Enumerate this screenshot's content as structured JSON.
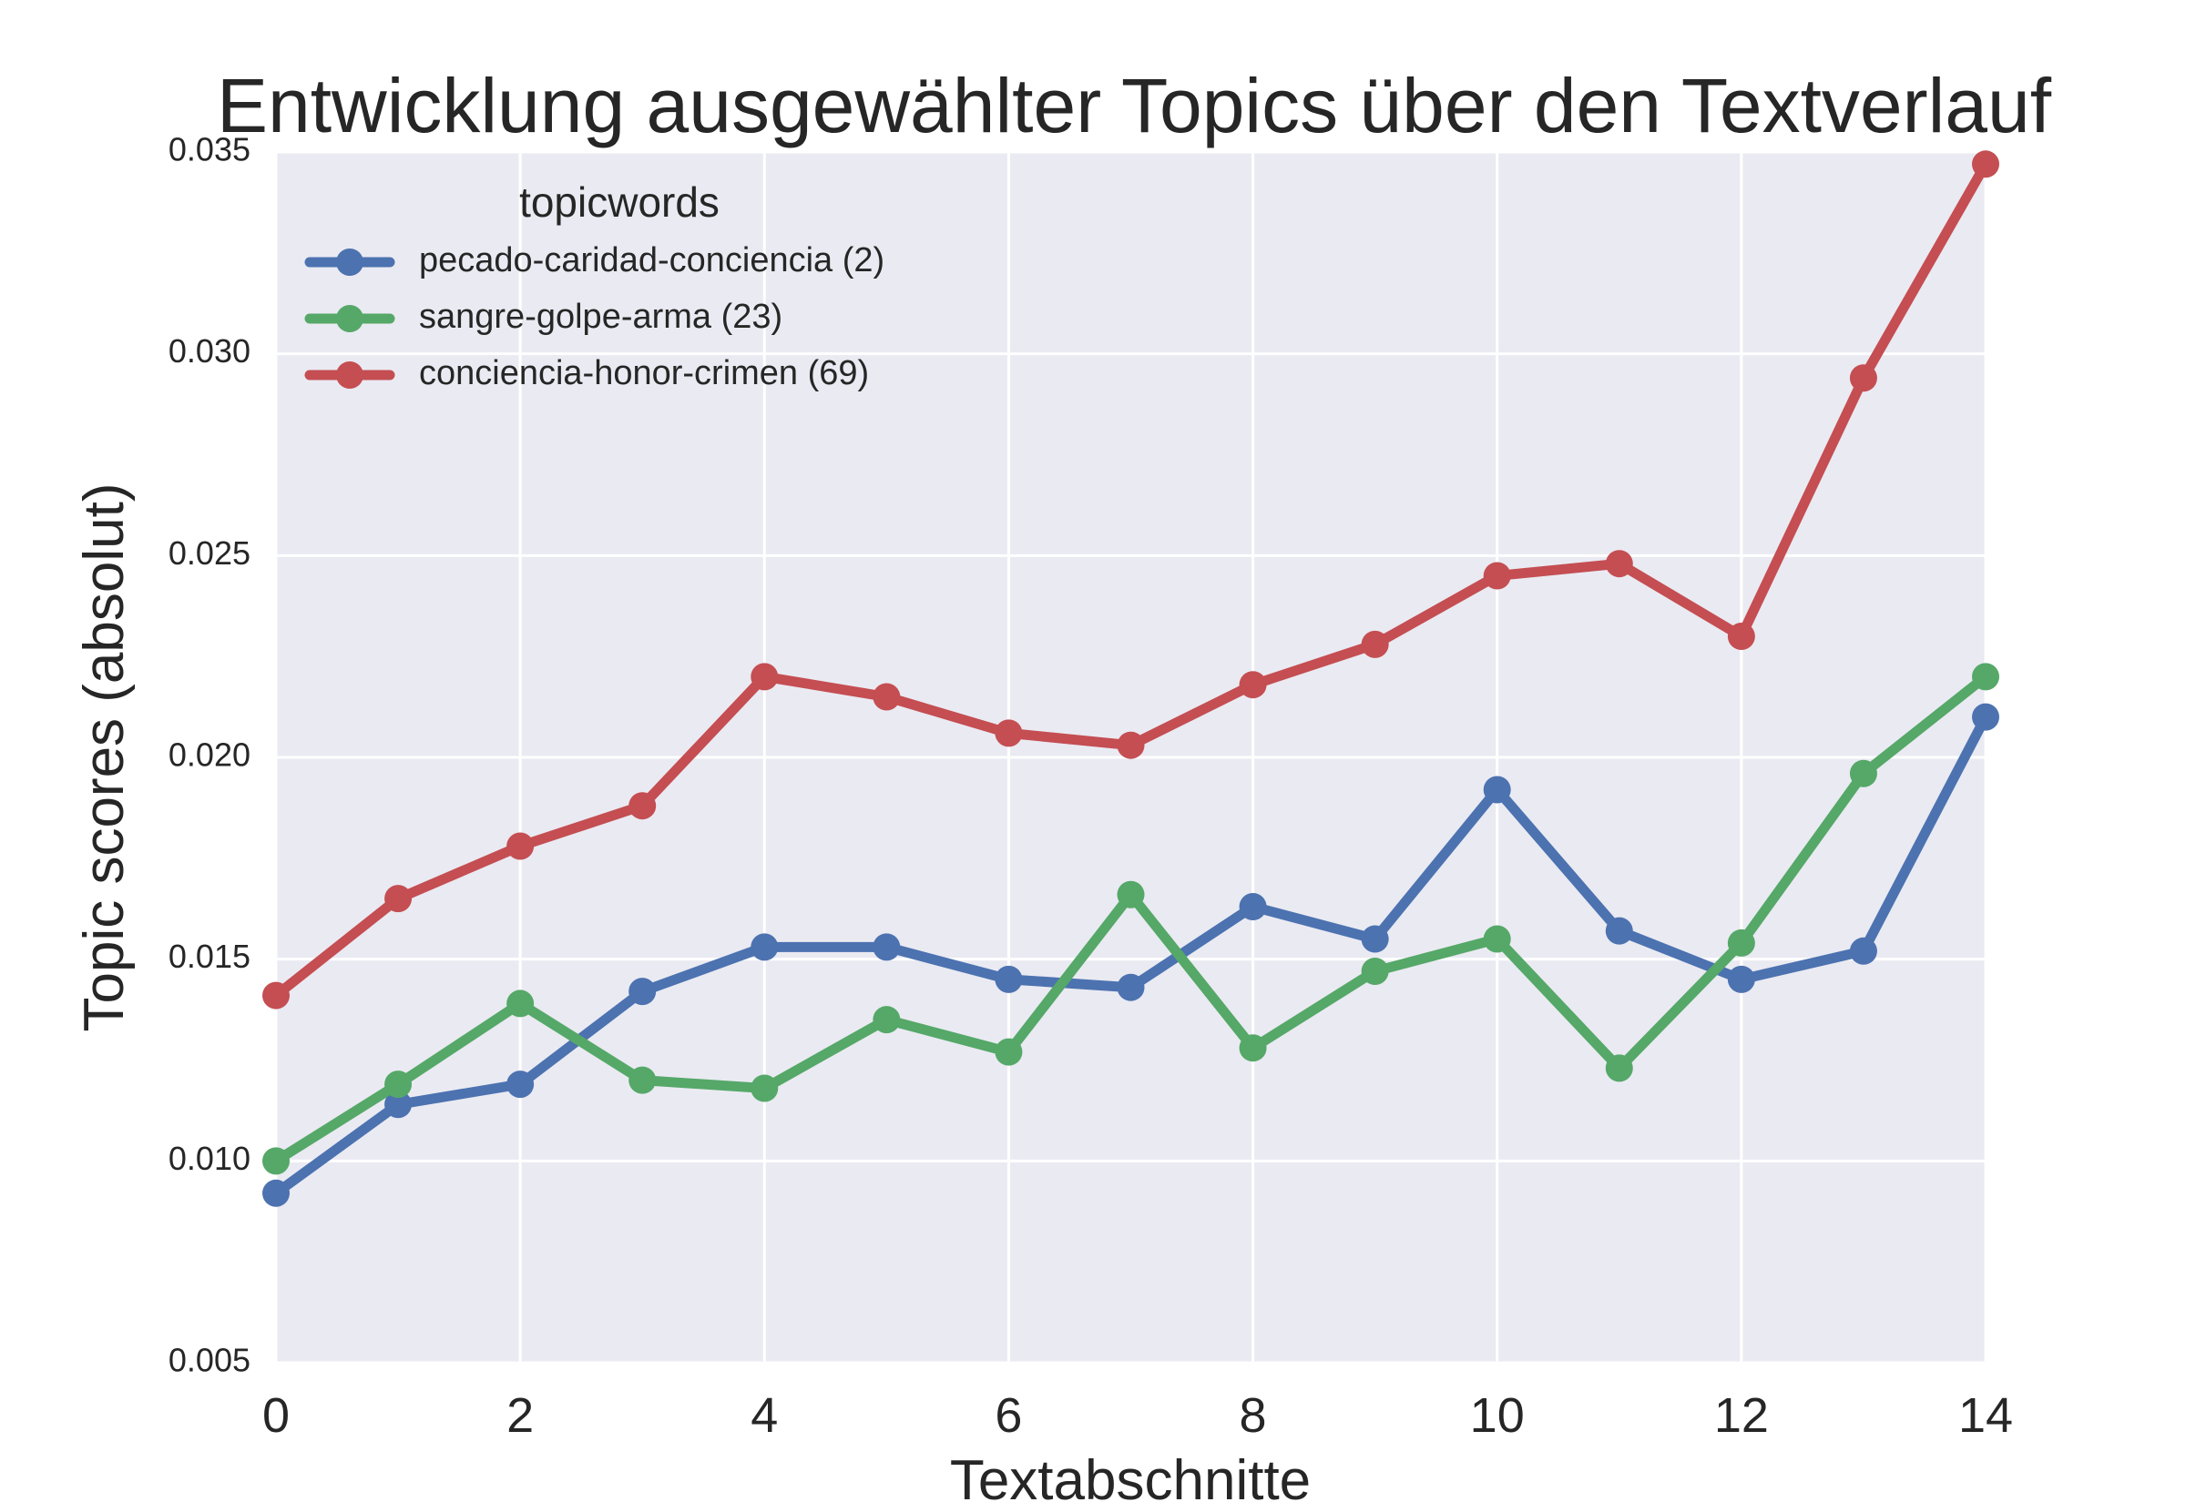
{
  "chart_data": {
    "type": "line",
    "title": "Entwicklung ausgewählter Topics über den Textverlauf",
    "xlabel": "Textabschnitte",
    "ylabel": "Topic scores (absolut)",
    "xlim": [
      0,
      14
    ],
    "ylim": [
      0.005,
      0.035
    ],
    "xticks": [
      "0",
      "2",
      "4",
      "6",
      "8",
      "10",
      "12",
      "14"
    ],
    "yticks": [
      "0.005",
      "0.010",
      "0.015",
      "0.020",
      "0.025",
      "0.030",
      "0.035"
    ],
    "grid": true,
    "legend": {
      "title": "topicwords",
      "placement": "top-left"
    },
    "x": [
      0,
      1,
      2,
      3,
      4,
      5,
      6,
      7,
      8,
      9,
      10,
      11,
      12,
      13,
      14
    ],
    "series": [
      {
        "name": "pecado-caridad-conciencia (2)",
        "color": "#4c72b0",
        "values": [
          0.0092,
          0.0114,
          0.0119,
          0.0142,
          0.0153,
          0.0153,
          0.0145,
          0.0143,
          0.0163,
          0.0155,
          0.0192,
          0.0157,
          0.0145,
          0.0152,
          0.021
        ]
      },
      {
        "name": "sangre-golpe-arma (23)",
        "color": "#55a868",
        "values": [
          0.01,
          0.0119,
          0.0139,
          0.012,
          0.0118,
          0.0135,
          0.0127,
          0.0166,
          0.0128,
          0.0147,
          0.0155,
          0.0123,
          0.0154,
          0.0196,
          0.022
        ]
      },
      {
        "name": "conciencia-honor-crimen (69)",
        "color": "#c44e52",
        "values": [
          0.0141,
          0.0165,
          0.0178,
          0.0188,
          0.022,
          0.0215,
          0.0206,
          0.0203,
          0.0218,
          0.0228,
          0.0245,
          0.0248,
          0.023,
          0.0294,
          0.0347
        ]
      }
    ],
    "background_color": "#eaeaf2",
    "grid_color": "#ffffff"
  }
}
